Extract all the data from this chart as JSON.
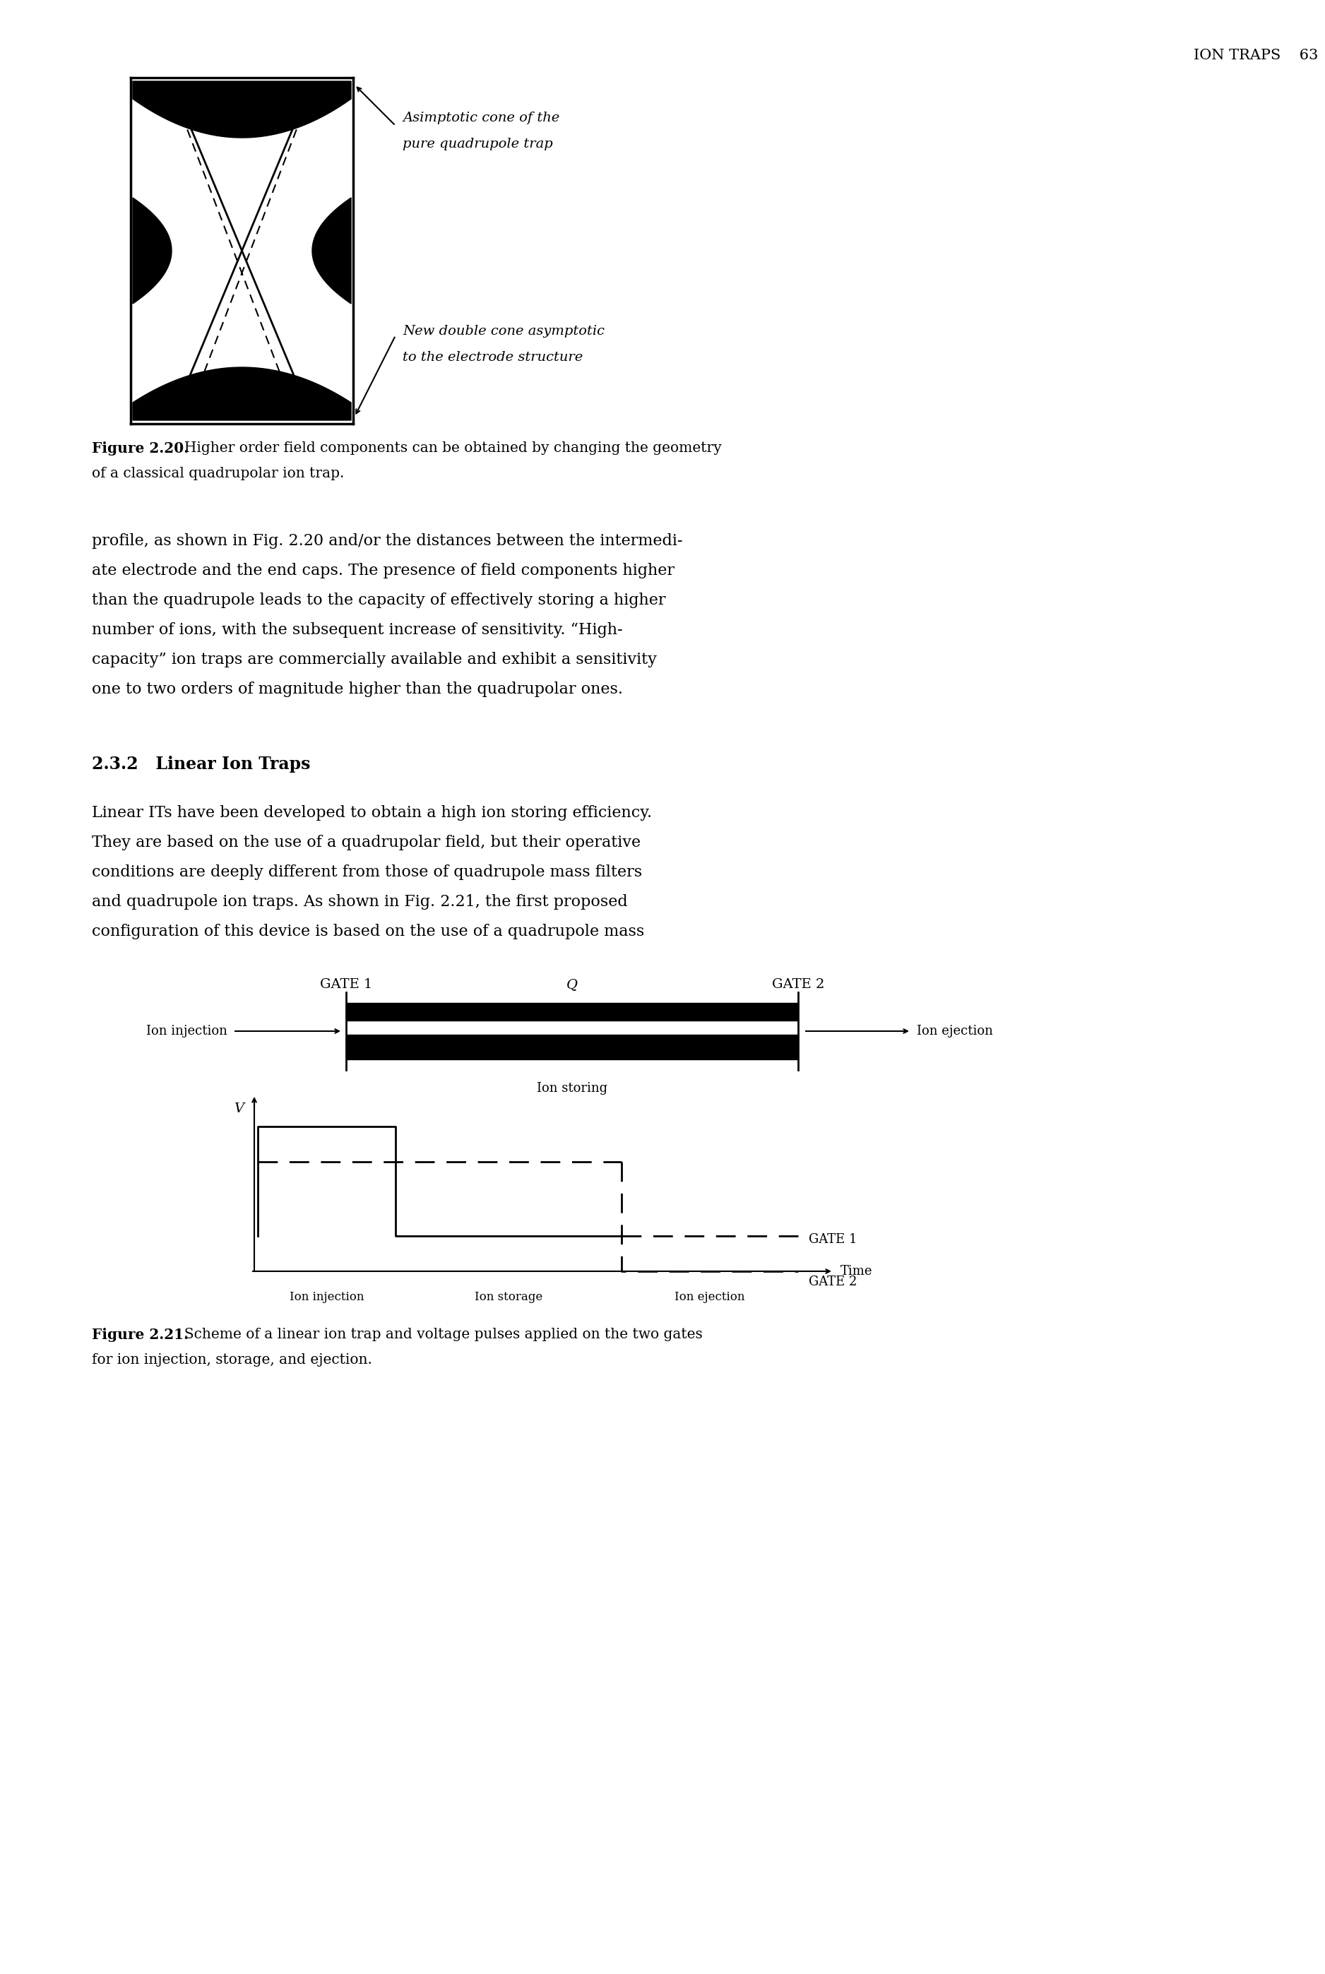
{
  "page_header": "ION TRAPS    63",
  "fig220_caption_bold": "Figure 2.20.",
  "fig220_caption_rest": "  Higher order field components can be obtained by changing the geometry of a classical quadrupolar ion trap.",
  "annotation1_line1": "Asimptotic cone of the",
  "annotation1_line2": "pure quadrupole trap",
  "annotation2_line1": "New double cone asymptotic",
  "annotation2_line2": "to the electrode structure",
  "fig221_caption_bold": "Figure 2.21.",
  "fig221_caption_rest": "  Scheme of a linear ion trap and voltage pulses applied on the two gates for ion injection, storage, and ejection.",
  "section_title": "2.3.2   Linear Ion Traps",
  "para1_lines": [
    "profile, as shown in Fig. 2.20 and/or the distances between the intermedi-",
    "ate electrode and the end caps. The presence of field components higher",
    "than the quadrupole leads to the capacity of effectively storing a higher",
    "number of ions, with the subsequent increase of sensitivity. “High-",
    "capacity” ion traps are commercially available and exhibit a sensitivity",
    "one to two orders of magnitude higher than the quadrupolar ones."
  ],
  "para2_lines": [
    "Linear ITs have been developed to obtain a high ion storing efficiency.",
    "They are based on the use of a quadrupolar field, but their operative",
    "conditions are deeply different from those of quadrupole mass filters",
    "and quadrupole ion traps. As shown in Fig. 2.21, the first proposed",
    "configuration of this device is based on the use of a quadrupole mass"
  ],
  "label_gate1": "GATE 1",
  "label_Q": "Q",
  "label_gate2": "GATE 2",
  "label_ion_injection": "Ion injection",
  "label_ion_ejection": "Ion ejection",
  "label_ion_storing": "Ion storing",
  "label_V": "V",
  "label_time": "Time",
  "label_gate1_v": "GATE 1",
  "label_gate2_v": "GATE 2",
  "label_ion_injection_x": "Ion injection",
  "label_ion_storage_x": "Ion storage",
  "label_ion_ejection_x": "Ion ejection",
  "bg_color": "#ffffff",
  "text_color": "#000000"
}
